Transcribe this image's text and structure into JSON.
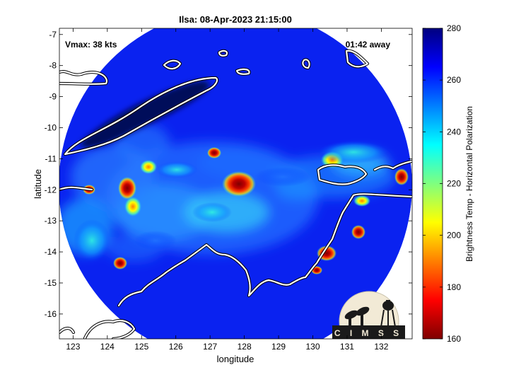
{
  "chart_data": {
    "type": "heatmap",
    "title": "Ilsa: 08-Apr-2023 21:15:00",
    "xlabel": "longitude",
    "ylabel": "latitude",
    "xlim": [
      122.6,
      132.9
    ],
    "ylim": [
      -16.8,
      -6.8
    ],
    "xticks": [
      123,
      124,
      125,
      126,
      127,
      128,
      129,
      130,
      131,
      132
    ],
    "yticks": [
      -7,
      -8,
      -9,
      -10,
      -11,
      -12,
      -13,
      -14,
      -15,
      -16
    ],
    "annotations": {
      "vmax": "Vmax: 38 kts",
      "time_away": "01:42 away"
    },
    "colorbar": {
      "label": "Brightness Temp - Horizontal Polarization",
      "range": [
        160,
        280
      ],
      "ticks": [
        280,
        260,
        240,
        220,
        200,
        180,
        160
      ]
    },
    "swath": {
      "center_lon": 127.7,
      "center_lat": -11.95
    },
    "features": [
      {
        "lon": 127.75,
        "lat": -11.85,
        "tb": 165
      },
      {
        "lon": 124.6,
        "lat": -12.1,
        "tb": 172
      },
      {
        "lon": 124.45,
        "lat": -14.35,
        "tb": 175
      },
      {
        "lon": 125.2,
        "lat": -10.95,
        "tb": 195
      },
      {
        "lon": 124.9,
        "lat": -12.5,
        "tb": 198
      },
      {
        "lon": 126.9,
        "lat": -10.8,
        "tb": 185
      },
      {
        "lon": 130.5,
        "lat": -10.9,
        "tb": 200
      },
      {
        "lon": 130.4,
        "lat": -14.1,
        "tb": 172
      },
      {
        "lon": 131.45,
        "lat": -13.3,
        "tb": 180
      },
      {
        "lon": 123.0,
        "lat": -11.95,
        "tb": 178
      },
      {
        "lon": 131.2,
        "lat": -12.5,
        "tb": 200
      },
      {
        "lon": 132.1,
        "lat": -11.8,
        "tb": 185
      }
    ],
    "grid": false
  },
  "logo": {
    "text": "CIMSS"
  }
}
